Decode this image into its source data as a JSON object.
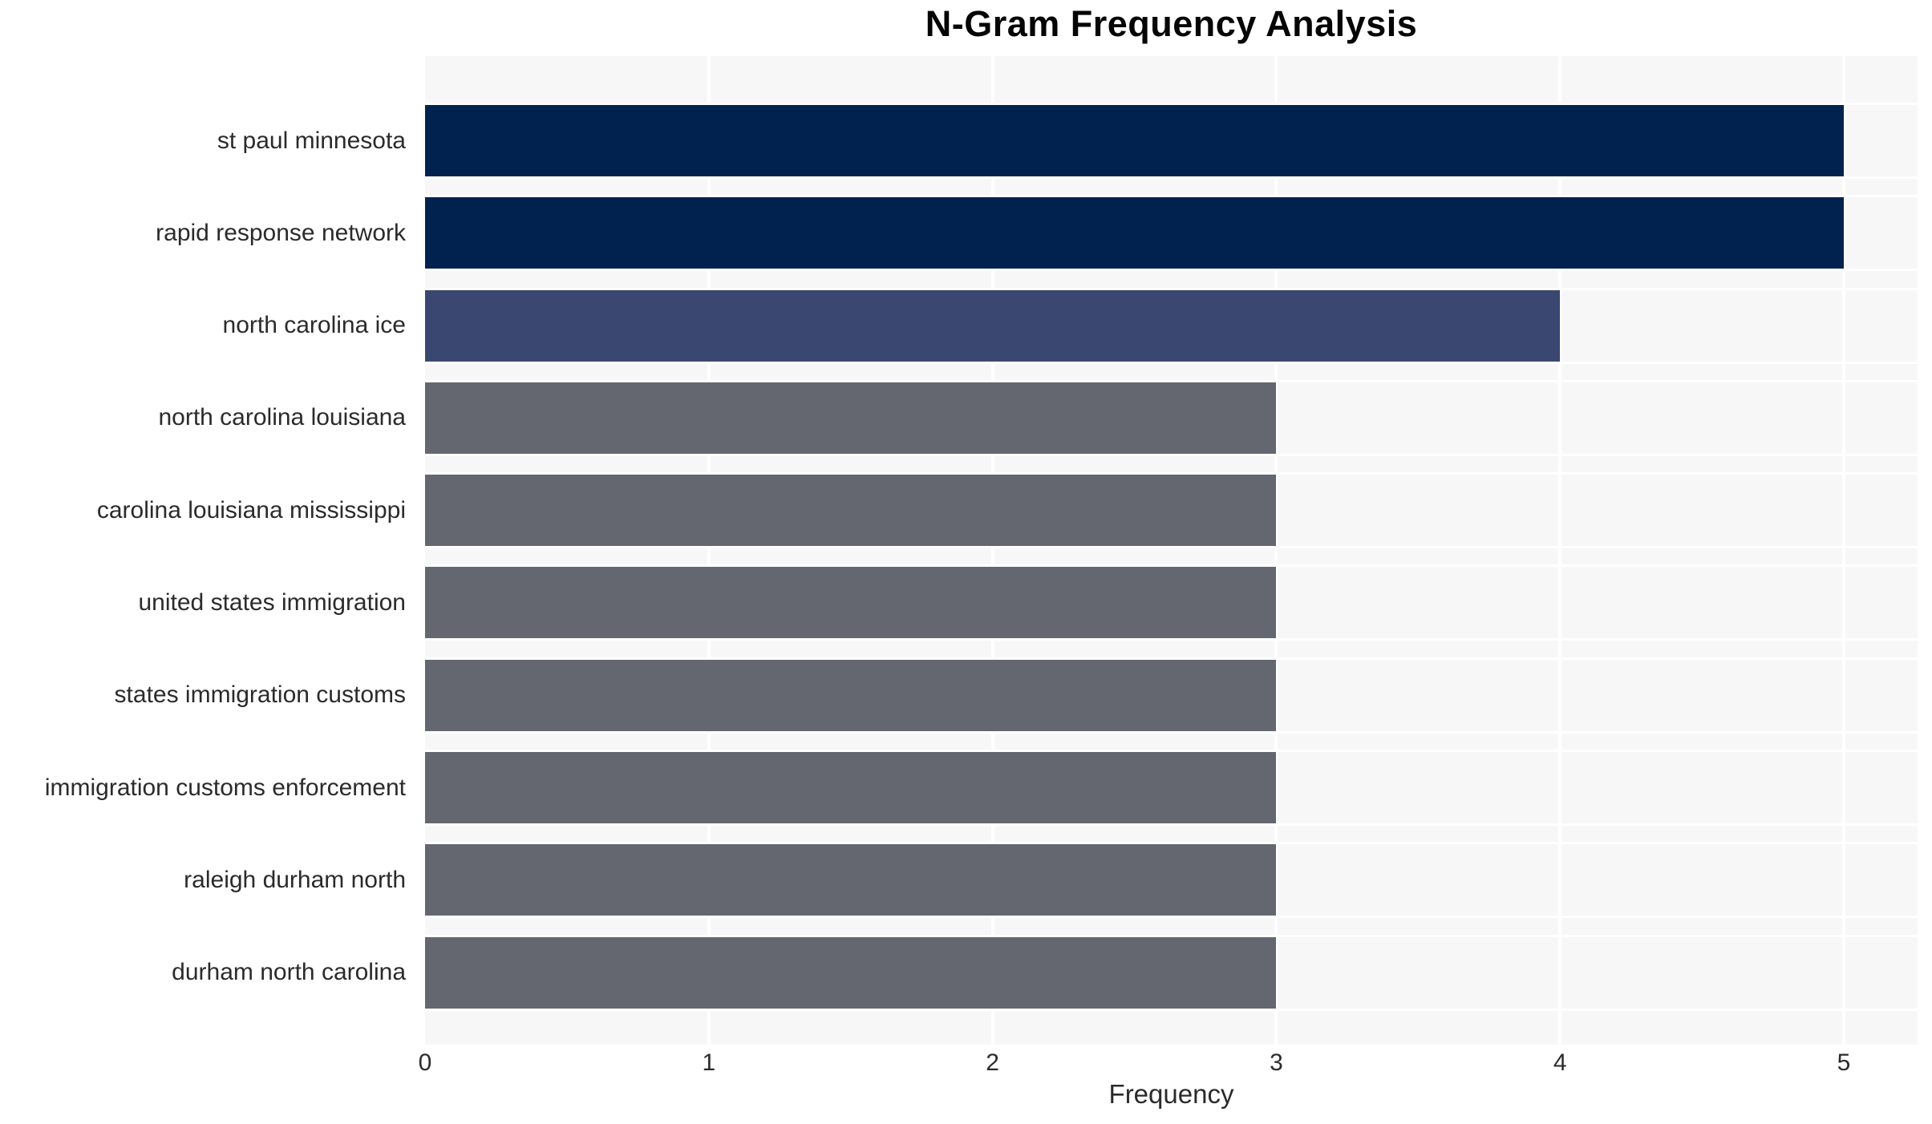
{
  "chart_data": {
    "type": "bar",
    "orientation": "horizontal",
    "title": "N-Gram Frequency Analysis",
    "xlabel": "Frequency",
    "ylabel": "",
    "categories": [
      "st paul minnesota",
      "rapid response network",
      "north carolina ice",
      "north carolina louisiana",
      "carolina louisiana mississippi",
      "united states immigration",
      "states immigration customs",
      "immigration customs enforcement",
      "raleigh durham north",
      "durham north carolina"
    ],
    "values": [
      5,
      5,
      4,
      3,
      3,
      3,
      3,
      3,
      3,
      3
    ],
    "bar_colors": [
      "#01224f",
      "#01224f",
      "#3a4770",
      "#64676f",
      "#64676f",
      "#64676f",
      "#64676f",
      "#64676f",
      "#64676f",
      "#64676f"
    ],
    "x_ticks": [
      "0",
      "1",
      "2",
      "3",
      "4",
      "5"
    ],
    "xlim": [
      0,
      5.26
    ],
    "grid": true,
    "legend": "none",
    "plot_bgcolor": "#f7f7f7",
    "grid_color": "#ffffff",
    "colors_meaning": {
      "freq_5": "#01224f",
      "freq_4": "#3a4770",
      "freq_3": "#64676f"
    }
  }
}
